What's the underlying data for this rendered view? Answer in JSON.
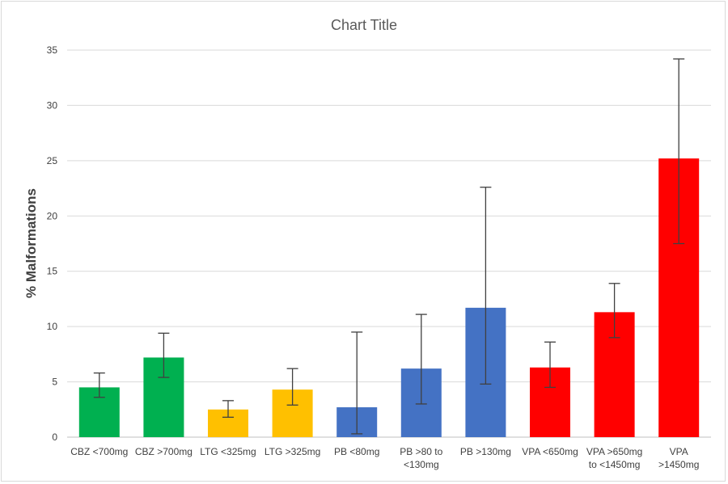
{
  "chart_data": {
    "type": "bar",
    "title": "Chart Title",
    "xlabel": "",
    "ylabel": "% Malformations",
    "ylim": [
      0,
      35
    ],
    "yticks": [
      "0",
      "5",
      "10",
      "15",
      "20",
      "25",
      "30",
      "35"
    ],
    "grid": true,
    "legend": "none",
    "categories": [
      [
        "CBZ <700mg"
      ],
      [
        "CBZ >700mg"
      ],
      [
        "LTG <325mg"
      ],
      [
        "LTG >325mg"
      ],
      [
        "PB <80mg"
      ],
      [
        "PB >80 to",
        "<130mg"
      ],
      [
        "PB >130mg"
      ],
      [
        "VPA <650mg"
      ],
      [
        "VPA >650mg",
        "to <1450mg"
      ],
      [
        "VPA",
        ">1450mg"
      ]
    ],
    "values": [
      4.5,
      7.2,
      2.5,
      4.3,
      2.7,
      6.2,
      11.7,
      6.3,
      11.3,
      25.2
    ],
    "error_low": [
      3.6,
      5.4,
      1.8,
      2.9,
      0.3,
      3.0,
      4.8,
      4.5,
      9.0,
      17.5
    ],
    "error_high": [
      5.8,
      9.4,
      3.3,
      6.2,
      9.5,
      11.1,
      22.6,
      8.6,
      13.9,
      34.2
    ],
    "colors": [
      "#00b050",
      "#00b050",
      "#ffc000",
      "#ffc000",
      "#4472c4",
      "#4472c4",
      "#4472c4",
      "#ff0000",
      "#ff0000",
      "#ff0000"
    ]
  }
}
